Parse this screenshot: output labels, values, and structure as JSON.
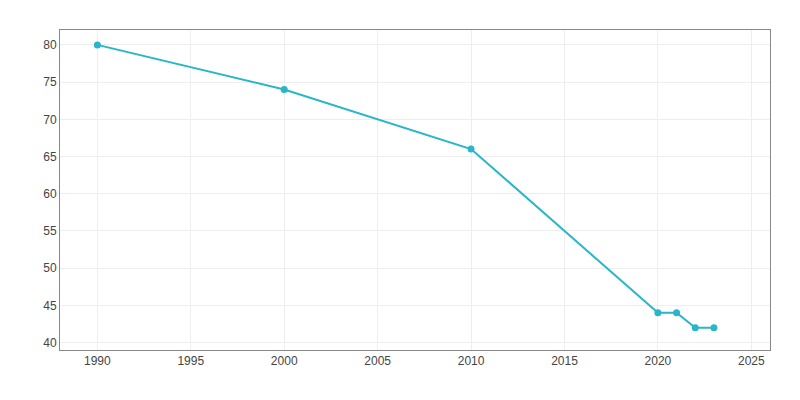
{
  "chart_data": {
    "type": "line",
    "x": [
      1990,
      2000,
      2010,
      2020,
      2021,
      2022,
      2023
    ],
    "values": [
      80,
      74,
      66,
      44,
      44,
      42,
      42
    ],
    "color": "#29b6c8",
    "marker": "circle",
    "xlim": [
      1988,
      2026
    ],
    "ylim": [
      39,
      82
    ],
    "xticks": [
      1990,
      1995,
      2000,
      2005,
      2010,
      2015,
      2020,
      2025
    ],
    "yticks": [
      40,
      45,
      50,
      55,
      60,
      65,
      70,
      75,
      80
    ],
    "grid": true
  }
}
